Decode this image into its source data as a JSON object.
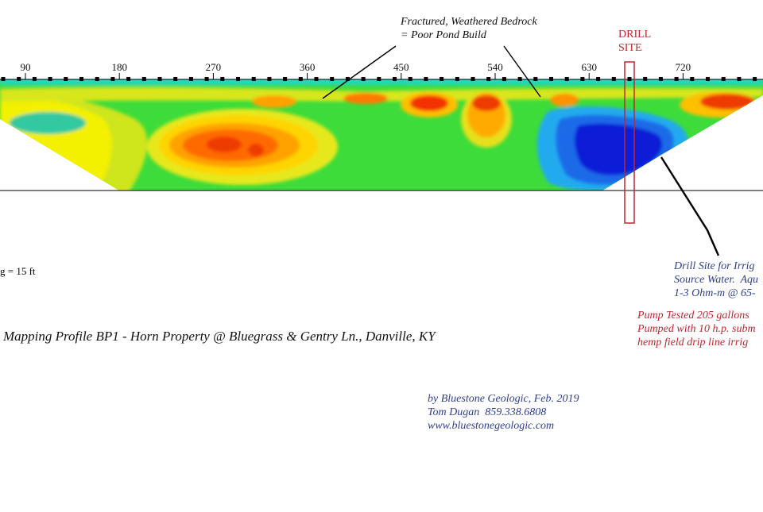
{
  "annotations": {
    "bedrock_note": [
      "Fractured, Weathered Bedrock",
      "= Poor Pond Build"
    ],
    "drill_label": [
      "DRILL",
      "SITE"
    ],
    "spacing_note": "g = 15 ft",
    "profile_title": "Mapping Profile BP1 - Horn Property @ Bluegrass & Gentry Ln., Danville, KY",
    "drill_site_note": [
      "Drill Site for Irrig",
      "Source Water.  Aqu",
      "1-3 Ohm-m @ 65-"
    ],
    "pump_note": [
      "Pump Tested 205 gallons",
      "Pumped with 10 h.p. subm",
      "hemp field drip line irrig"
    ],
    "credits": [
      "by Bluestone Geologic, Feb. 2019",
      "Tom Dugan  859.338.6808",
      "www.bluestonegeologic.com"
    ]
  },
  "axis": {
    "ticks": [
      "90",
      "180",
      "270",
      "360",
      "450",
      "540",
      "630",
      "720"
    ]
  },
  "colors": {
    "low_resistivity": "#0a1fd6",
    "mid_resistivity": "#22dd22",
    "high_resistivity": "#e81a00",
    "annotation_red": "#c0272d",
    "annotation_blue": "#2f3e8f"
  }
}
